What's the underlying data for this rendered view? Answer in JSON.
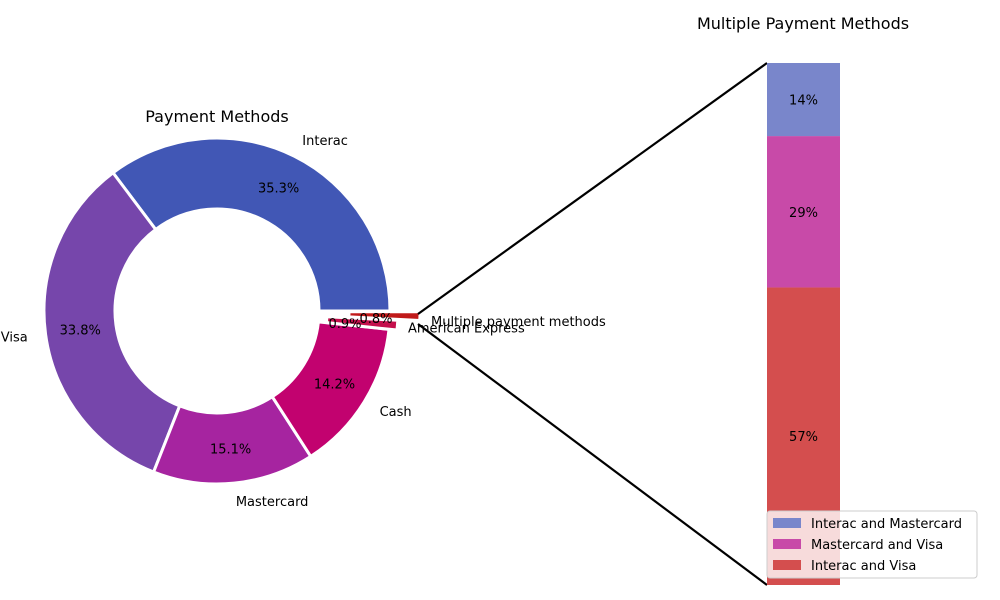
{
  "chart_data": [
    {
      "type": "pie",
      "title": "Payment Methods",
      "donut": true,
      "slices": [
        {
          "label": "Interac",
          "value": 35.3,
          "pct_label": "35.3%",
          "color": "#4157b5"
        },
        {
          "label": "Visa",
          "value": 33.8,
          "pct_label": "33.8%",
          "color": "#7646ab"
        },
        {
          "label": "Mastercard",
          "value": 15.1,
          "pct_label": "15.1%",
          "color": "#a624a0"
        },
        {
          "label": "Cash",
          "value": 14.2,
          "pct_label": "14.2%",
          "color": "#c2026f"
        },
        {
          "label": "American Express",
          "value": 0.9,
          "pct_label": "0.9%",
          "color": "#c40f4c"
        },
        {
          "label": "Multiple payment methods",
          "value": 0.8,
          "pct_label": "0.8%",
          "color": "#c01a1a"
        }
      ]
    },
    {
      "type": "bar",
      "stacked": true,
      "title": "Multiple Payment Methods",
      "series": [
        {
          "name": "Interac and Visa",
          "value": 57,
          "label": "57%",
          "color": "#d44e4e"
        },
        {
          "name": "Mastercard and Visa",
          "value": 29,
          "label": "29%",
          "color": "#c84aa8"
        },
        {
          "name": "Interac and Mastercard",
          "value": 14,
          "label": "14%",
          "color": "#7986cb"
        }
      ],
      "legend": {
        "placement": "bottom-right",
        "entries": [
          "Interac and Mastercard",
          "Mastercard and Visa",
          "Interac and Visa"
        ]
      }
    }
  ]
}
